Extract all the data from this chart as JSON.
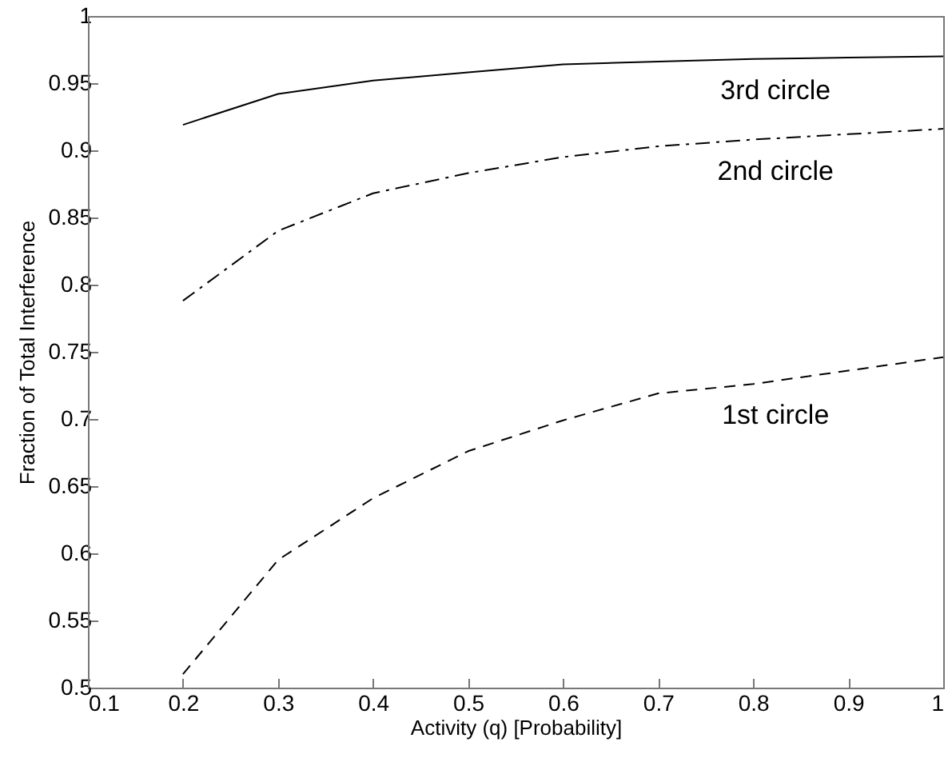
{
  "chart_data": {
    "type": "line",
    "xlabel": "Activity (q) [Probability]",
    "ylabel": "Fraction of Total Interference",
    "x": [
      0.2,
      0.3,
      0.4,
      0.5,
      0.6,
      0.7,
      0.8,
      0.9,
      1.0
    ],
    "series": [
      {
        "name": "3rd circle",
        "color": "#000000",
        "line_style": "solid",
        "values": [
          0.919,
          0.942,
          0.952,
          0.958,
          0.964,
          0.966,
          0.968,
          0.969,
          0.97
        ]
      },
      {
        "name": "2nd circle",
        "color": "#000000",
        "line_style": "dashdot",
        "values": [
          0.788,
          0.84,
          0.868,
          0.883,
          0.895,
          0.903,
          0.908,
          0.912,
          0.916
        ]
      },
      {
        "name": "1st circle",
        "color": "#000000",
        "line_style": "dashed",
        "values": [
          0.51,
          0.595,
          0.641,
          0.676,
          0.699,
          0.719,
          0.726,
          0.736,
          0.746
        ]
      }
    ],
    "xlim": [
      0.1,
      1
    ],
    "xticks": [
      0.1,
      0.2,
      0.3,
      0.4,
      0.5,
      0.6,
      0.7,
      0.8,
      0.9,
      1
    ],
    "ylim": [
      0.5,
      1
    ],
    "yticks": [
      0.5,
      0.55,
      0.6,
      0.65,
      0.7,
      0.75,
      0.8,
      0.85,
      0.9,
      0.95,
      1
    ],
    "grid": false,
    "marker": "none"
  }
}
